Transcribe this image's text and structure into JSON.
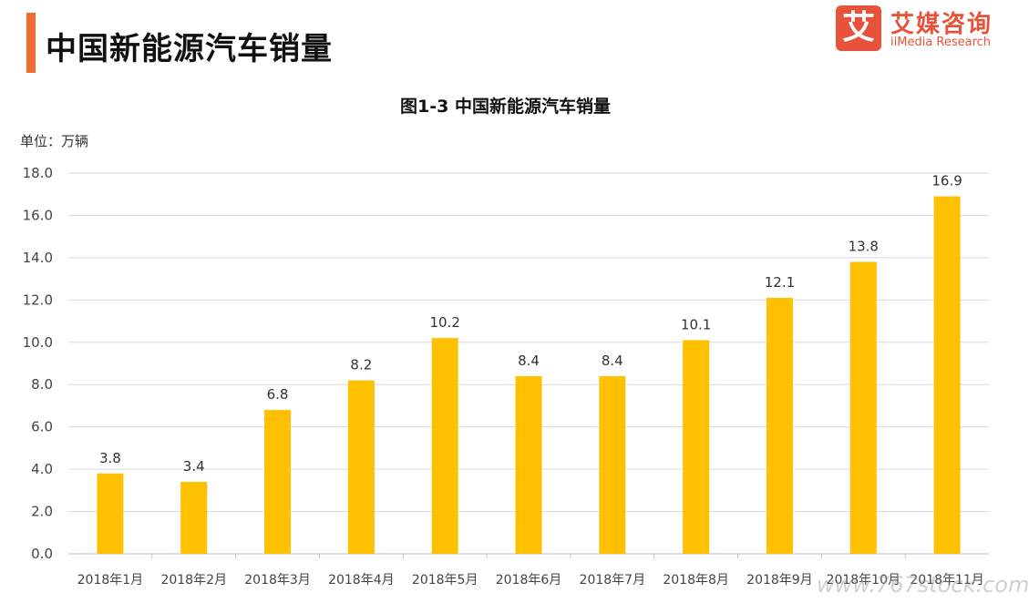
{
  "header": {
    "title": "中国新能源汽车销量",
    "accent_color": "#F26A2E"
  },
  "logo": {
    "mark": "艾",
    "name_cn": "艾媒咨询",
    "name_en": "iiMedia Research",
    "color": "#E8523A"
  },
  "unit_label": "单位：万辆",
  "watermark": "www.767stock.com",
  "chart_data": {
    "type": "bar",
    "title": "图1-3 中国新能源汽车销量",
    "xlabel": "",
    "ylabel": "",
    "categories": [
      "2018年1月",
      "2018年2月",
      "2018年3月",
      "2018年4月",
      "2018年5月",
      "2018年6月",
      "2018年7月",
      "2018年8月",
      "2018年9月",
      "2018年10月",
      "2018年11月"
    ],
    "values": [
      3.8,
      3.4,
      6.8,
      8.2,
      10.2,
      8.4,
      8.4,
      10.1,
      12.1,
      13.8,
      16.9
    ],
    "ylim": [
      0,
      18
    ],
    "yticks": [
      "0.0",
      "2.0",
      "4.0",
      "6.0",
      "8.0",
      "10.0",
      "12.0",
      "14.0",
      "16.0",
      "18.0"
    ],
    "grid": true,
    "bar_color": "#FFC000",
    "legend": "none"
  }
}
